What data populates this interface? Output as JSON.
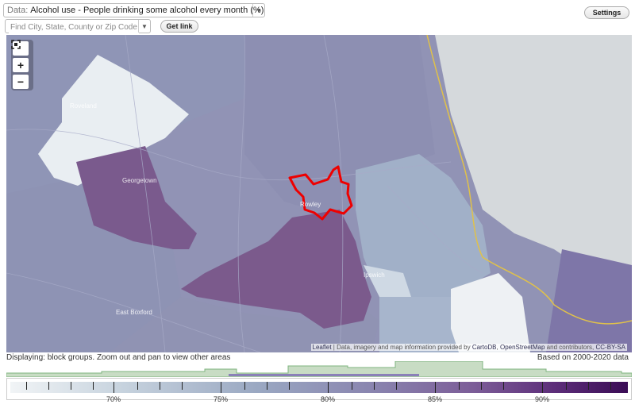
{
  "toolbar": {
    "data_label": "Data:",
    "data_value": "Alcohol use - People drinking some alcohol every month (%)",
    "search_placeholder": "Find City, State, County or Zip Code",
    "get_link_label": "Get link",
    "settings_label": "Settings"
  },
  "map": {
    "zoom_in_label": "+",
    "zoom_out_label": "−",
    "places": [
      "Roveland",
      "Georgetown",
      "Rowley",
      "Ipswich",
      "East Boxford"
    ],
    "attribution": {
      "leaflet": "Leaflet",
      "text1": " | Data, imagery and map information provided by ",
      "cartodb": "CartoDB",
      "text2": ", ",
      "osm": "OpenStreetMap",
      "text3": " and contributors, ",
      "license": "CC-BY-SA"
    }
  },
  "status": {
    "left": "Displaying: block groups. Zoom out and pan to view other areas",
    "right": "Based on 2000-2020 data"
  },
  "legend": {
    "tick_labels": [
      "70%",
      "75%",
      "80%",
      "85%",
      "90%"
    ]
  },
  "colors": {
    "highlight": "#ee0000",
    "ocean": "#d5d9dc",
    "coastline": "#e0c14a",
    "histogram": "#7fb57f"
  }
}
